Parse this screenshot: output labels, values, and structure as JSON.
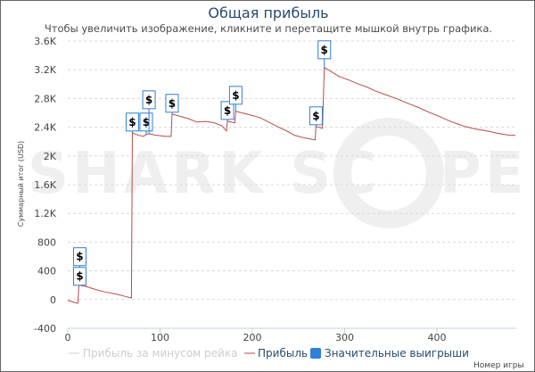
{
  "chart_data": {
    "type": "line",
    "title": "Общая прибыль",
    "subtitle": "Чтобы увеличить изображение, кликните и перетащите мышкой внутрь графика.",
    "xlabel": "Номер игры",
    "ylabel": "Суммарный итог (USD)",
    "xlim": [
      0,
      490
    ],
    "ylim": [
      -400,
      3600
    ],
    "xticks": [
      "0",
      "100",
      "200",
      "300",
      "400"
    ],
    "xtick_values": [
      0,
      100,
      200,
      300,
      400
    ],
    "yticks": [
      "-400",
      "0",
      "400",
      "800",
      "1.2K",
      "1.6K",
      "2K",
      "2.4K",
      "2.8K",
      "3.2K",
      "3.6K"
    ],
    "ytick_values": [
      -400,
      0,
      400,
      800,
      1200,
      1600,
      2000,
      2400,
      2800,
      3200,
      3600
    ],
    "grid": true,
    "legend_position": "bottom",
    "series": [
      {
        "name": "Прибыль за минусом рейка",
        "hidden": true,
        "color": "#cccccc",
        "points": []
      },
      {
        "name": "Прибыль",
        "color": "#b94a48",
        "points": [
          [
            0,
            -10
          ],
          [
            5,
            -30
          ],
          [
            10,
            -50
          ],
          [
            11,
            -50
          ],
          [
            12,
            200
          ],
          [
            19,
            185
          ],
          [
            30,
            140
          ],
          [
            39,
            110
          ],
          [
            53,
            75
          ],
          [
            62,
            45
          ],
          [
            68,
            25
          ],
          [
            69,
            20
          ],
          [
            70,
            2323
          ],
          [
            76,
            2290
          ],
          [
            82,
            2273
          ],
          [
            85,
            2298
          ],
          [
            88,
            2310
          ],
          [
            95,
            2290
          ],
          [
            106,
            2273
          ],
          [
            112,
            2273
          ],
          [
            113,
            2584
          ],
          [
            122,
            2550
          ],
          [
            130,
            2522
          ],
          [
            140,
            2472
          ],
          [
            150,
            2480
          ],
          [
            159,
            2460
          ],
          [
            167,
            2420
          ],
          [
            172,
            2348
          ],
          [
            173,
            2484
          ],
          [
            181,
            2460
          ],
          [
            182,
            2621
          ],
          [
            195,
            2580
          ],
          [
            208,
            2534
          ],
          [
            218,
            2470
          ],
          [
            227,
            2410
          ],
          [
            237,
            2350
          ],
          [
            246,
            2286
          ],
          [
            257,
            2250
          ],
          [
            268,
            2224
          ],
          [
            269,
            2410
          ],
          [
            276,
            2385
          ],
          [
            278,
            3230
          ],
          [
            286,
            3170
          ],
          [
            294,
            3106
          ],
          [
            304,
            3060
          ],
          [
            314,
            3006
          ],
          [
            324,
            2960
          ],
          [
            333,
            2907
          ],
          [
            345,
            2850
          ],
          [
            357,
            2795
          ],
          [
            369,
            2730
          ],
          [
            381,
            2670
          ],
          [
            391,
            2610
          ],
          [
            401,
            2559
          ],
          [
            415,
            2480
          ],
          [
            430,
            2410
          ],
          [
            442,
            2375
          ],
          [
            454,
            2348
          ],
          [
            468,
            2310
          ],
          [
            478,
            2290
          ],
          [
            485,
            2286
          ]
        ]
      },
      {
        "name": "Значительные выигрыши",
        "color": "#2f7ed8",
        "type": "flags",
        "label": "$",
        "points": [
          [
            13,
            200
          ],
          [
            13,
            200
          ],
          [
            70,
            2323
          ],
          [
            85,
            2298
          ],
          [
            88,
            2310
          ],
          [
            113,
            2584
          ],
          [
            173,
            2484
          ],
          [
            182,
            2621
          ],
          [
            269,
            2410
          ],
          [
            278,
            3230
          ]
        ]
      }
    ]
  },
  "watermark": "SHARK SCOPE"
}
